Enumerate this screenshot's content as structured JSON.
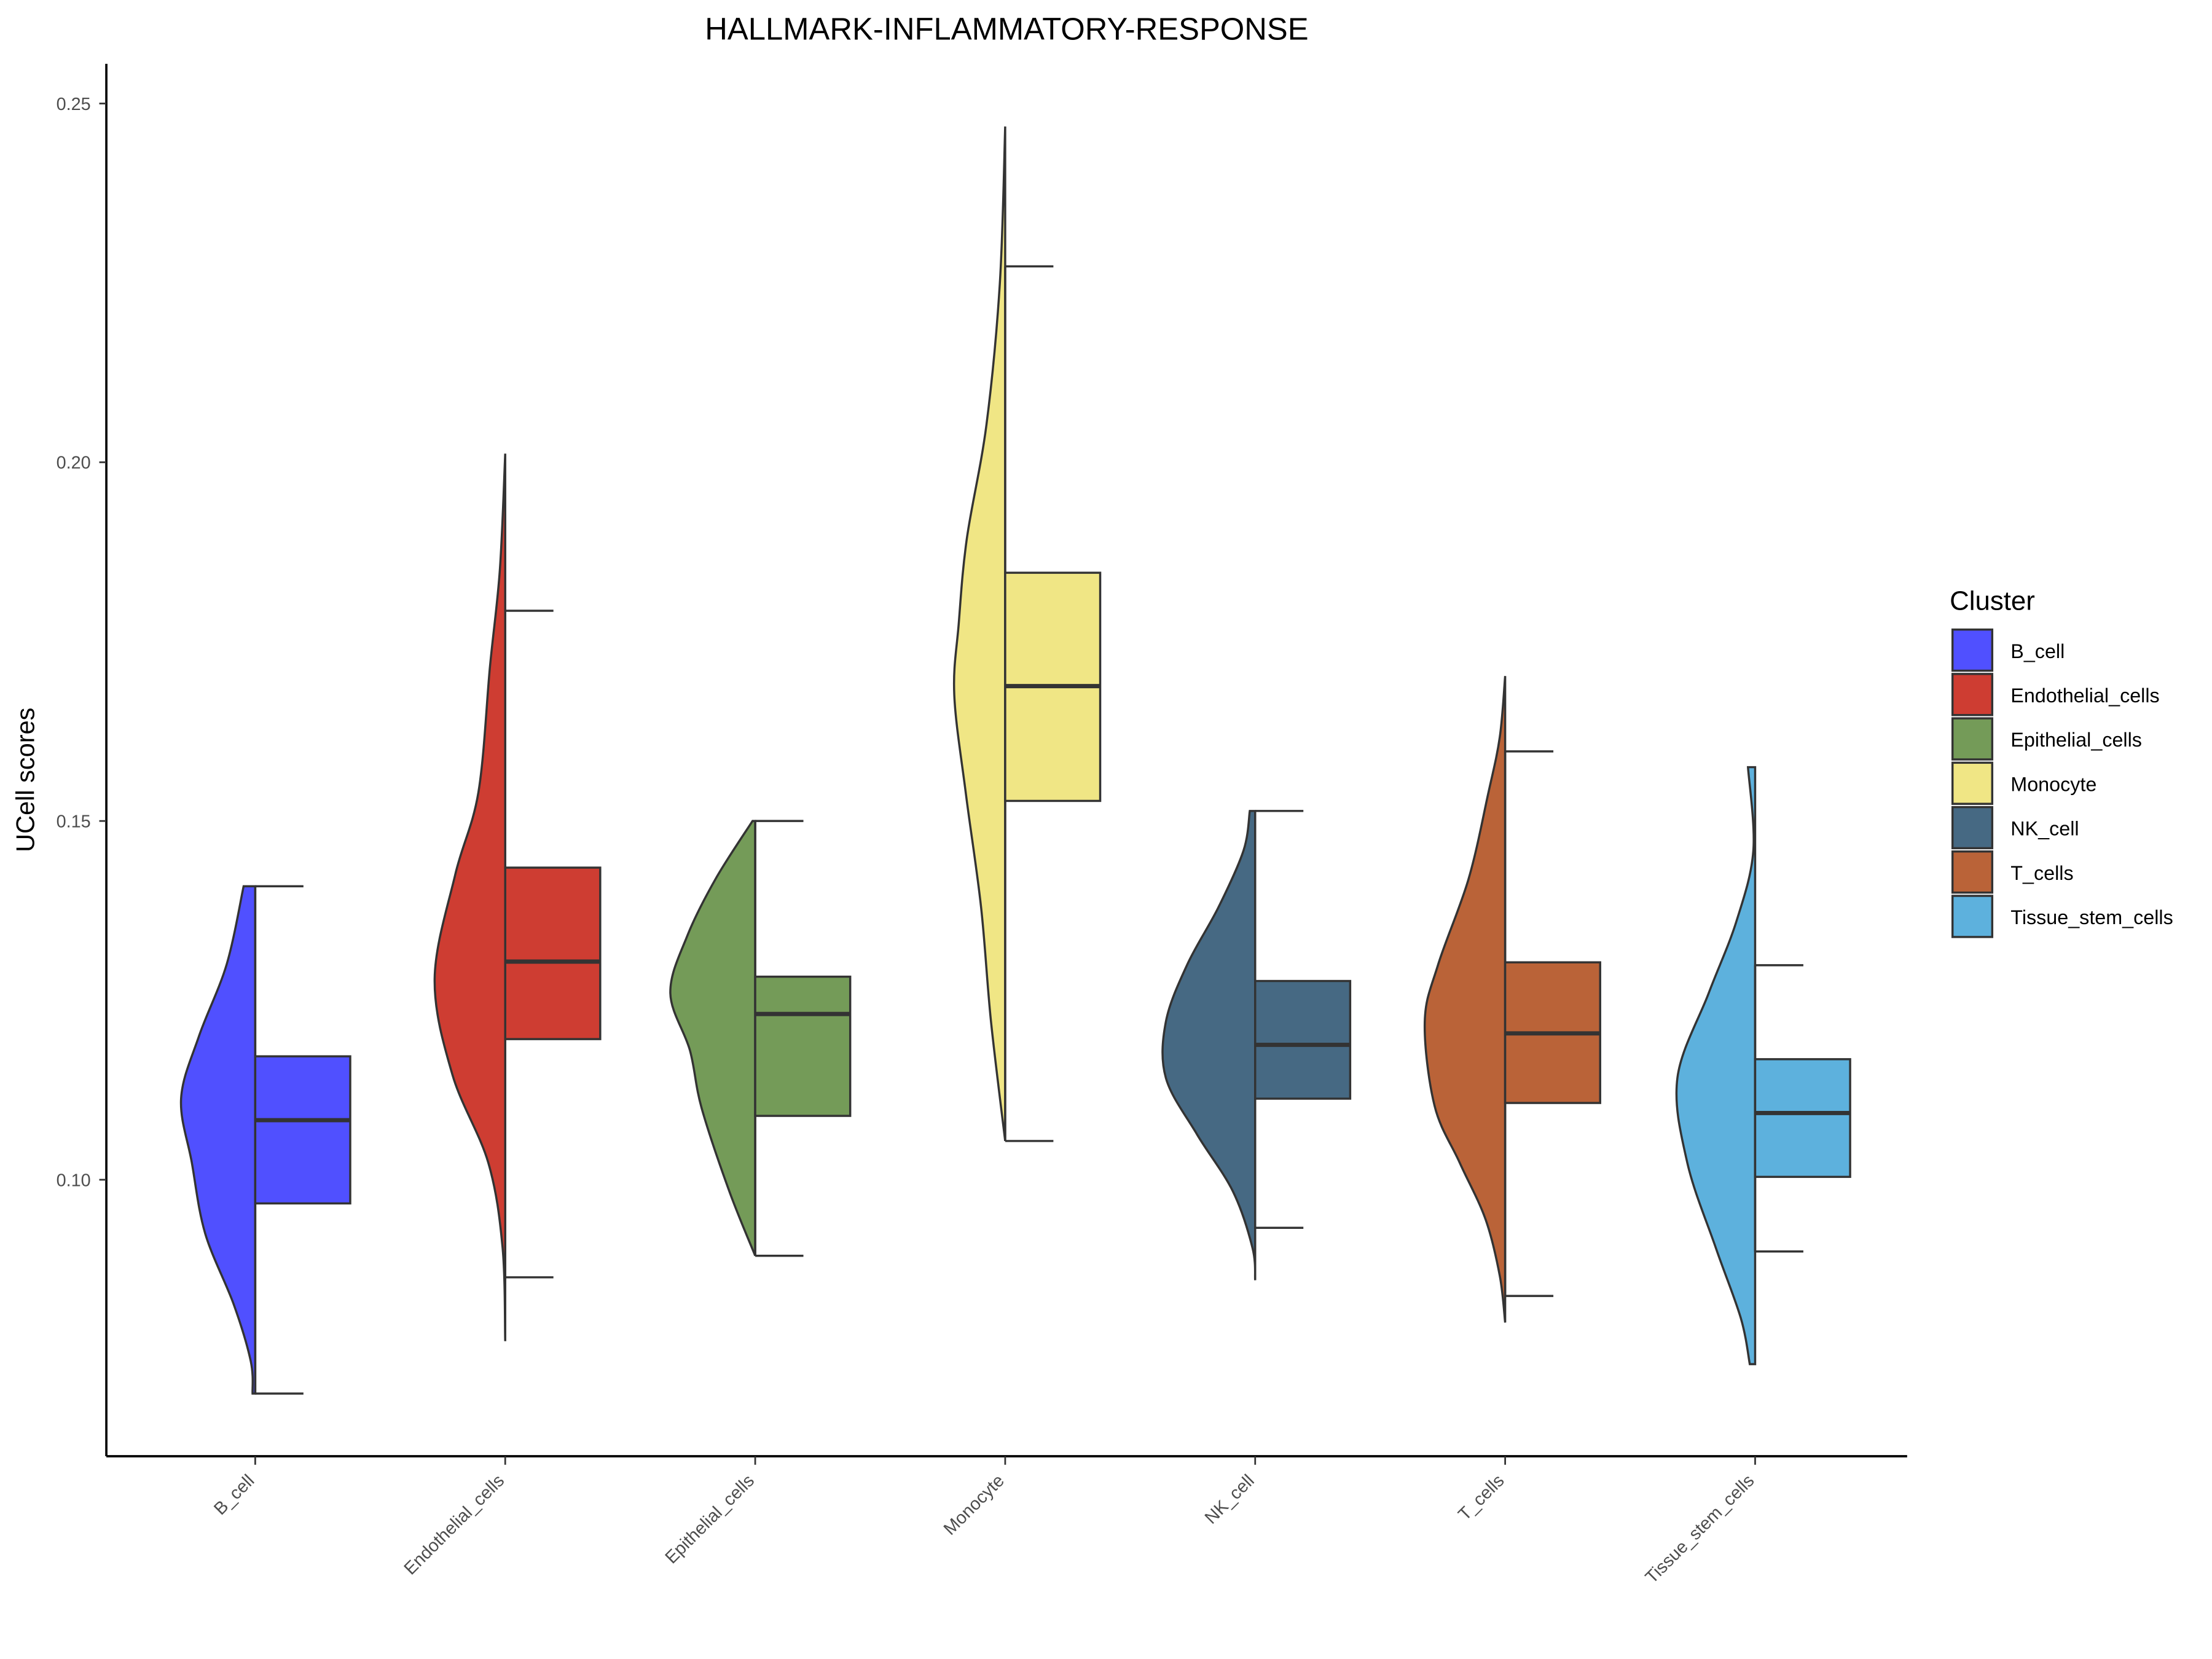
{
  "chart_data": {
    "type": "violin",
    "title": "HALLMARK-INFLAMMATORY-RESPONSE",
    "xlabel": "",
    "ylabel": "UCell scores",
    "ylim": [
      0.0613,
      0.2555
    ],
    "yticks": [
      "0.10",
      "0.15",
      "0.20",
      "0.25"
    ],
    "ytick_values": [
      0.1,
      0.15,
      0.2,
      0.25
    ],
    "grid": false,
    "legend": {
      "title": "Cluster",
      "position": "right"
    },
    "categories": [
      "B_cell",
      "Endothelial_cells",
      "Epithelial_cells",
      "Monocyte",
      "NK_cell",
      "T_cells",
      "Tissue_stem_cells"
    ],
    "colors": [
      "#5050FF",
      "#CE3D32",
      "#749B58",
      "#F0E685",
      "#466983",
      "#BA6338",
      "#5DB1DD"
    ],
    "boxplot": [
      {
        "whisker_low": 0.0702,
        "q1": 0.0967,
        "median": 0.1083,
        "q3": 0.1172,
        "whisker_high": 0.1409
      },
      {
        "whisker_low": 0.0864,
        "q1": 0.1196,
        "median": 0.1304,
        "q3": 0.1435,
        "whisker_high": 0.1793
      },
      {
        "whisker_low": 0.0894,
        "q1": 0.1089,
        "median": 0.1231,
        "q3": 0.1283,
        "whisker_high": 0.15
      },
      {
        "whisker_low": 0.1054,
        "q1": 0.1528,
        "median": 0.1688,
        "q3": 0.1846,
        "whisker_high": 0.2273
      },
      {
        "whisker_low": 0.0933,
        "q1": 0.1113,
        "median": 0.1188,
        "q3": 0.1277,
        "whisker_high": 0.1514
      },
      {
        "whisker_low": 0.0838,
        "q1": 0.1107,
        "median": 0.1204,
        "q3": 0.1303,
        "whisker_high": 0.1597
      },
      {
        "whisker_low": 0.09,
        "q1": 0.1004,
        "median": 0.1093,
        "q3": 0.1168,
        "whisker_high": 0.1299
      }
    ],
    "violin_density": [
      [
        [
          0.1409,
          0.13
        ],
        [
          0.13,
          0.32
        ],
        [
          0.12,
          0.63
        ],
        [
          0.1113,
          0.83
        ],
        [
          0.1024,
          0.71
        ],
        [
          0.0925,
          0.56
        ],
        [
          0.0826,
          0.24
        ],
        [
          0.0747,
          0.05
        ],
        [
          0.0702,
          0.03
        ]
      ],
      [
        [
          0.2012,
          0.0
        ],
        [
          0.185,
          0.06
        ],
        [
          0.1716,
          0.17
        ],
        [
          0.154,
          0.3
        ],
        [
          0.1425,
          0.56
        ],
        [
          0.128,
          0.79
        ],
        [
          0.1146,
          0.59
        ],
        [
          0.1024,
          0.19
        ],
        [
          0.0906,
          0.03
        ],
        [
          0.0775,
          0.0
        ]
      ],
      [
        [
          0.15,
          0.03
        ],
        [
          0.142,
          0.44
        ],
        [
          0.134,
          0.76
        ],
        [
          0.126,
          0.95
        ],
        [
          0.118,
          0.73
        ],
        [
          0.11,
          0.6
        ],
        [
          0.0984,
          0.29
        ],
        [
          0.0894,
          0.0
        ]
      ],
      [
        [
          0.2468,
          0.0
        ],
        [
          0.2249,
          0.06
        ],
        [
          0.2052,
          0.21
        ],
        [
          0.1893,
          0.43
        ],
        [
          0.1775,
          0.52
        ],
        [
          0.1676,
          0.57
        ],
        [
          0.1538,
          0.44
        ],
        [
          0.138,
          0.27
        ],
        [
          0.1222,
          0.16
        ],
        [
          0.1054,
          0.0
        ]
      ],
      [
        [
          0.1514,
          0.06
        ],
        [
          0.1459,
          0.13
        ],
        [
          0.138,
          0.41
        ],
        [
          0.13,
          0.76
        ],
        [
          0.122,
          1.0
        ],
        [
          0.1142,
          1.0
        ],
        [
          0.1063,
          0.65
        ],
        [
          0.0984,
          0.25
        ],
        [
          0.0905,
          0.03
        ],
        [
          0.086,
          0.0
        ]
      ],
      [
        [
          0.1702,
          0.0
        ],
        [
          0.1617,
          0.06
        ],
        [
          0.1538,
          0.19
        ],
        [
          0.1419,
          0.41
        ],
        [
          0.13,
          0.75
        ],
        [
          0.122,
          0.9
        ],
        [
          0.1103,
          0.79
        ],
        [
          0.1024,
          0.51
        ],
        [
          0.0945,
          0.22
        ],
        [
          0.0866,
          0.06
        ],
        [
          0.0801,
          0.0
        ]
      ],
      [
        [
          0.1575,
          0.08
        ],
        [
          0.1459,
          0.02
        ],
        [
          0.136,
          0.21
        ],
        [
          0.126,
          0.52
        ],
        [
          0.1142,
          0.87
        ],
        [
          0.1024,
          0.76
        ],
        [
          0.0905,
          0.44
        ],
        [
          0.0807,
          0.16
        ],
        [
          0.0743,
          0.06
        ]
      ]
    ]
  }
}
